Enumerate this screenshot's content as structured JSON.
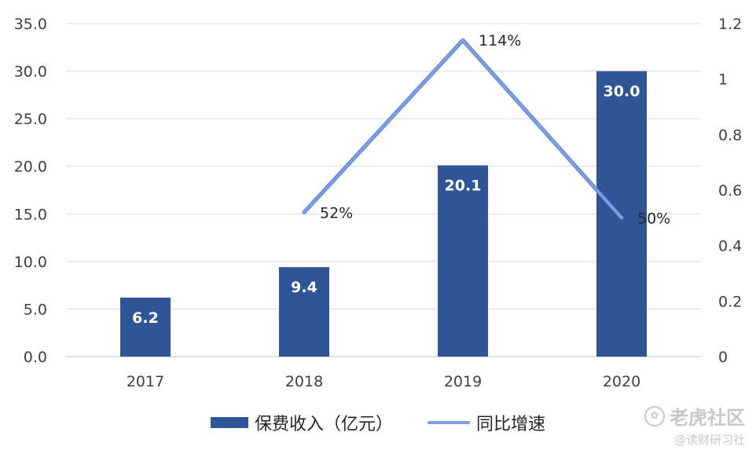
{
  "chart_data": {
    "type": "bar+line",
    "categories": [
      "2017",
      "2018",
      "2019",
      "2020"
    ],
    "series": [
      {
        "name": "保费收入（亿元）",
        "type": "bar",
        "axis": "left",
        "values": [
          6.2,
          9.4,
          20.1,
          30.0
        ],
        "value_labels": [
          "6.2",
          "9.4",
          "20.1",
          "30.0"
        ],
        "color": "#2f5597"
      },
      {
        "name": "同比增速",
        "type": "line",
        "axis": "right",
        "values": [
          null,
          0.52,
          1.14,
          0.5
        ],
        "value_labels": [
          "",
          "52%",
          "114%",
          "50%"
        ],
        "color": "#7e9fe5"
      }
    ],
    "y_left": {
      "ylim": [
        0,
        35
      ],
      "ticks": [
        "0.0",
        "5.0",
        "10.0",
        "15.0",
        "20.0",
        "25.0",
        "30.0",
        "35.0"
      ]
    },
    "y_right": {
      "ylim": [
        0,
        1.2
      ],
      "ticks": [
        "0",
        "0.2",
        "0.4",
        "0.6",
        "0.8",
        "1",
        "1.2"
      ]
    },
    "grid": true,
    "legend_position": "bottom"
  },
  "watermark": {
    "icon": "tiger-logo-icon",
    "title": "老虎社区",
    "subtitle": "@读财研习社"
  }
}
